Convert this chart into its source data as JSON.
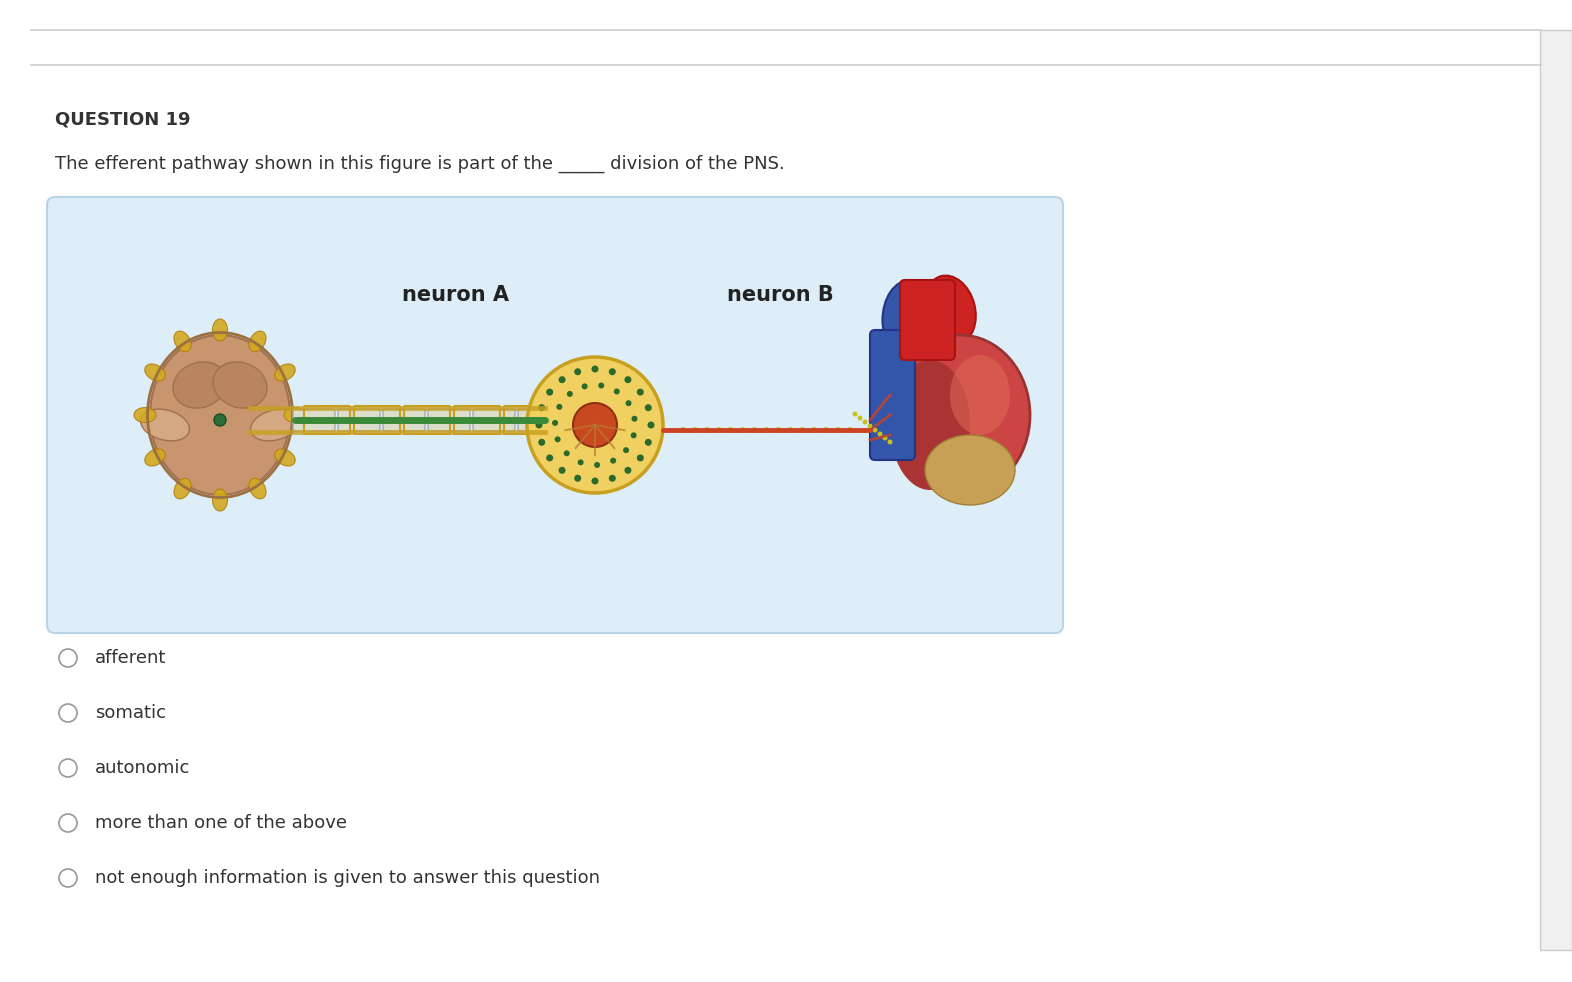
{
  "bg_color": "#ffffff",
  "border_color": "#cccccc",
  "question_number": "QUESTION 19",
  "question_text": "The efferent pathway shown in this figure is part of the _____ division of the PNS.",
  "question_number_fontsize": 13,
  "question_text_fontsize": 13,
  "options": [
    "afferent",
    "somatic",
    "autonomic",
    "more than one of the above",
    "not enough information is given to answer this question"
  ],
  "option_fontsize": 13,
  "neuron_a_label": "neuron A",
  "neuron_b_label": "neuron B",
  "neuron_label_fontsize": 15,
  "diagram_bg": "#ddeef8",
  "diagram_bg_light": "#e8f4fb"
}
